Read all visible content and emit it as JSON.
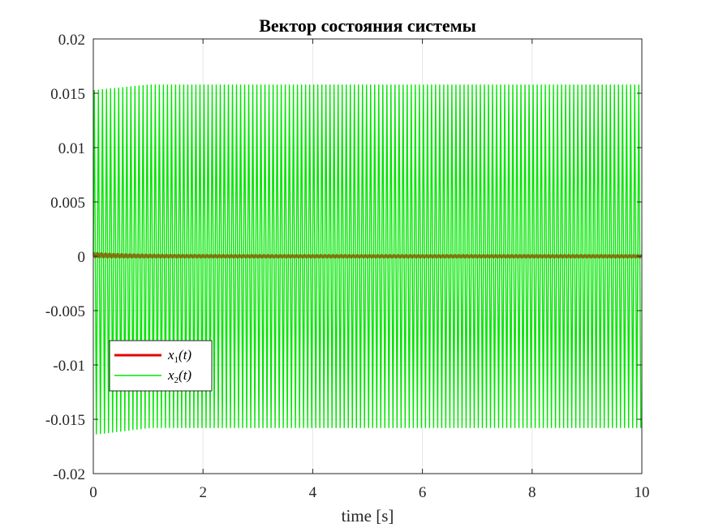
{
  "chart_data": {
    "type": "line",
    "title": "Вектор состояния системы",
    "xlabel": "time [s]",
    "ylabel": "",
    "xlim": [
      0,
      10
    ],
    "ylim": [
      -0.02,
      0.02
    ],
    "xticks": [
      0,
      2,
      4,
      6,
      8,
      10
    ],
    "xtick_labels": [
      "0",
      "2",
      "4",
      "6",
      "8",
      "10"
    ],
    "yticks": [
      -0.02,
      -0.015,
      -0.01,
      -0.005,
      0,
      0.005,
      0.01,
      0.015,
      0.02
    ],
    "ytick_labels": [
      "-0.02",
      "-0.015",
      "-0.01",
      "-0.005",
      "0",
      "0.005",
      "0.01",
      "0.015",
      "0.02"
    ],
    "grid": true,
    "legend_position": "lower-left",
    "series": [
      {
        "name": "x1(t)",
        "legend_main": "x",
        "legend_sub": "1",
        "legend_tail": "(t)",
        "color": "#e60000",
        "description": "small decaying oscillation around zero",
        "initial_value": 0.0004,
        "steady_amplitude": 0.0002,
        "cycles_per_second": 13.5,
        "x_range": [
          0,
          10
        ]
      },
      {
        "name": "x2(t)",
        "legend_main": "x",
        "legend_sub": "2",
        "legend_tail": "(t)",
        "color": "#00e600",
        "description": "sustained oscillation",
        "initial_peak_min": -0.0164,
        "initial_peak_max": 0.0153,
        "steady_amplitude": 0.0158,
        "cycles_per_second": 13.5,
        "x_range": [
          0,
          10
        ]
      }
    ]
  }
}
